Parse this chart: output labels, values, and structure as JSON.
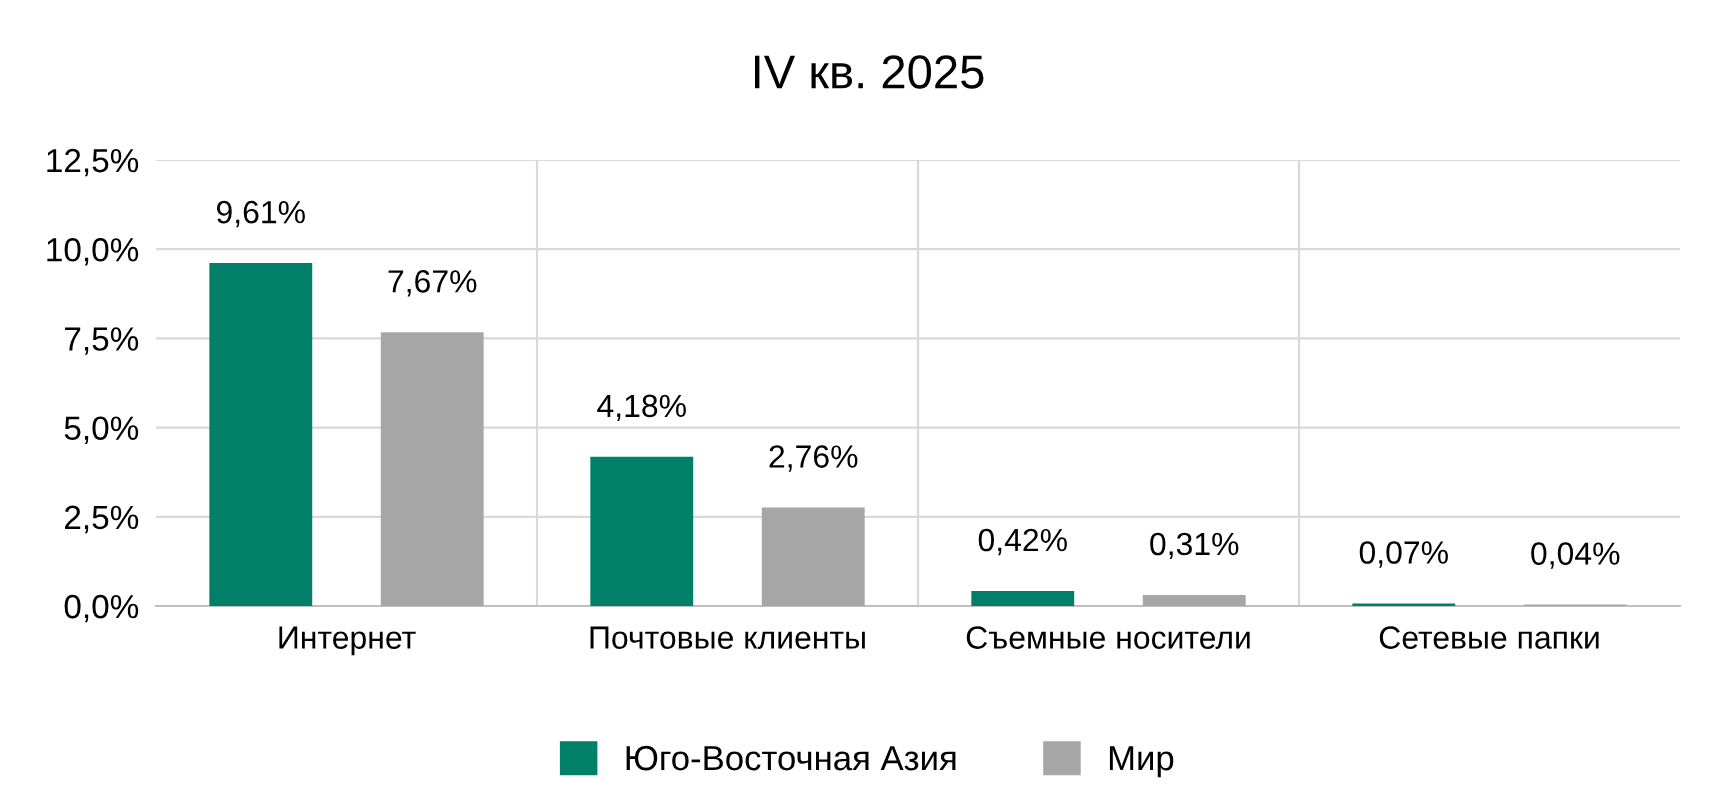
{
  "chart_data": {
    "type": "bar",
    "title": "IV кв. 2025",
    "categories": [
      "Интернет",
      "Почтовые клиенты",
      "Съемные носители",
      "Сетевые папки"
    ],
    "series": [
      {
        "name": "Юго-Восточная Азия",
        "color": "#008069",
        "values": [
          9.61,
          4.18,
          0.42,
          0.07
        ],
        "value_labels": [
          "9,61%",
          "4,18%",
          "0,42%",
          "0,07%"
        ]
      },
      {
        "name": "Мир",
        "color": "#a6a6a6",
        "values": [
          7.67,
          2.76,
          0.31,
          0.04
        ],
        "value_labels": [
          "7,67%",
          "2,76%",
          "0,31%",
          "0,04%"
        ]
      }
    ],
    "ylim": [
      0,
      12.5
    ],
    "yticks": [
      {
        "value": 0,
        "label": "0,0%"
      },
      {
        "value": 2.5,
        "label": "2,5%"
      },
      {
        "value": 5,
        "label": "5,0%"
      },
      {
        "value": 7.5,
        "label": "7,5%"
      },
      {
        "value": 10,
        "label": "10,0%"
      },
      {
        "value": 12.5,
        "label": "12,5%"
      }
    ],
    "grid": true,
    "legend": "bottom"
  }
}
